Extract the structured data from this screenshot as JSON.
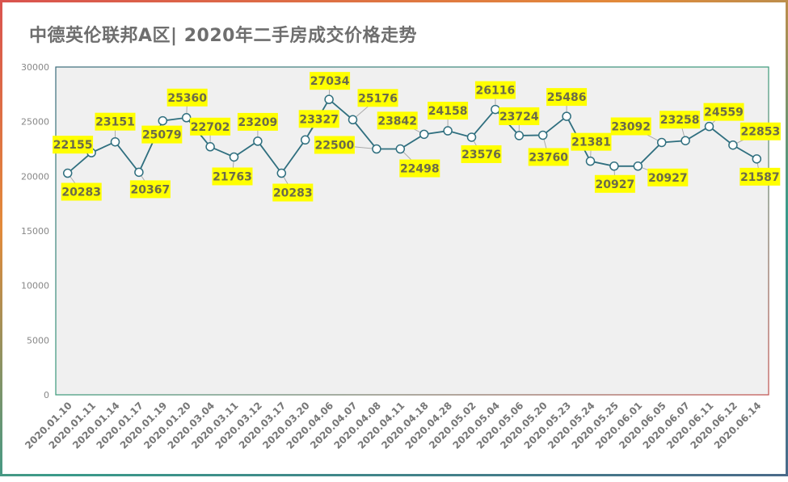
{
  "chart_data": {
    "type": "line",
    "title": "中德英伦联邦A区| 2020年二手房成交价格走势",
    "xlabel": "",
    "ylabel": "",
    "ylim": [
      0,
      30000
    ],
    "yticks": [
      0,
      5000,
      10000,
      15000,
      20000,
      25000,
      30000
    ],
    "grid": false,
    "categories": [
      "2020.01.10",
      "2020.01.11",
      "2020.01.14",
      "2020.01.17",
      "2020.01.19",
      "2020.01.20",
      "2020.03.04",
      "2020.03.11",
      "2020.03.12",
      "2020.03.17",
      "2020.03.20",
      "2020.04.06",
      "2020.04.07",
      "2020.04.08",
      "2020.04.11",
      "2020.04.18",
      "2020.04.28",
      "2020.05.02",
      "2020.05.04",
      "2020.05.06",
      "2020.05.20",
      "2020.05.23",
      "2020.05.24",
      "2020.05.25",
      "2020.06.01",
      "2020.06.05",
      "2020.06.07",
      "2020.06.11",
      "2020.06.12",
      "2020.06.14"
    ],
    "values": [
      20283,
      22155,
      23151,
      20367,
      25079,
      25360,
      22702,
      21763,
      23209,
      20283,
      23327,
      27034,
      25176,
      22500,
      22498,
      23842,
      24158,
      23576,
      26116,
      23724,
      23760,
      25486,
      21381,
      20927,
      20927,
      23092,
      23258,
      24559,
      22853,
      21587
    ],
    "colors": {
      "line": "#2f6f7f",
      "label_bg": "#ffff00",
      "plot_bg": "#f0f0f0"
    }
  }
}
